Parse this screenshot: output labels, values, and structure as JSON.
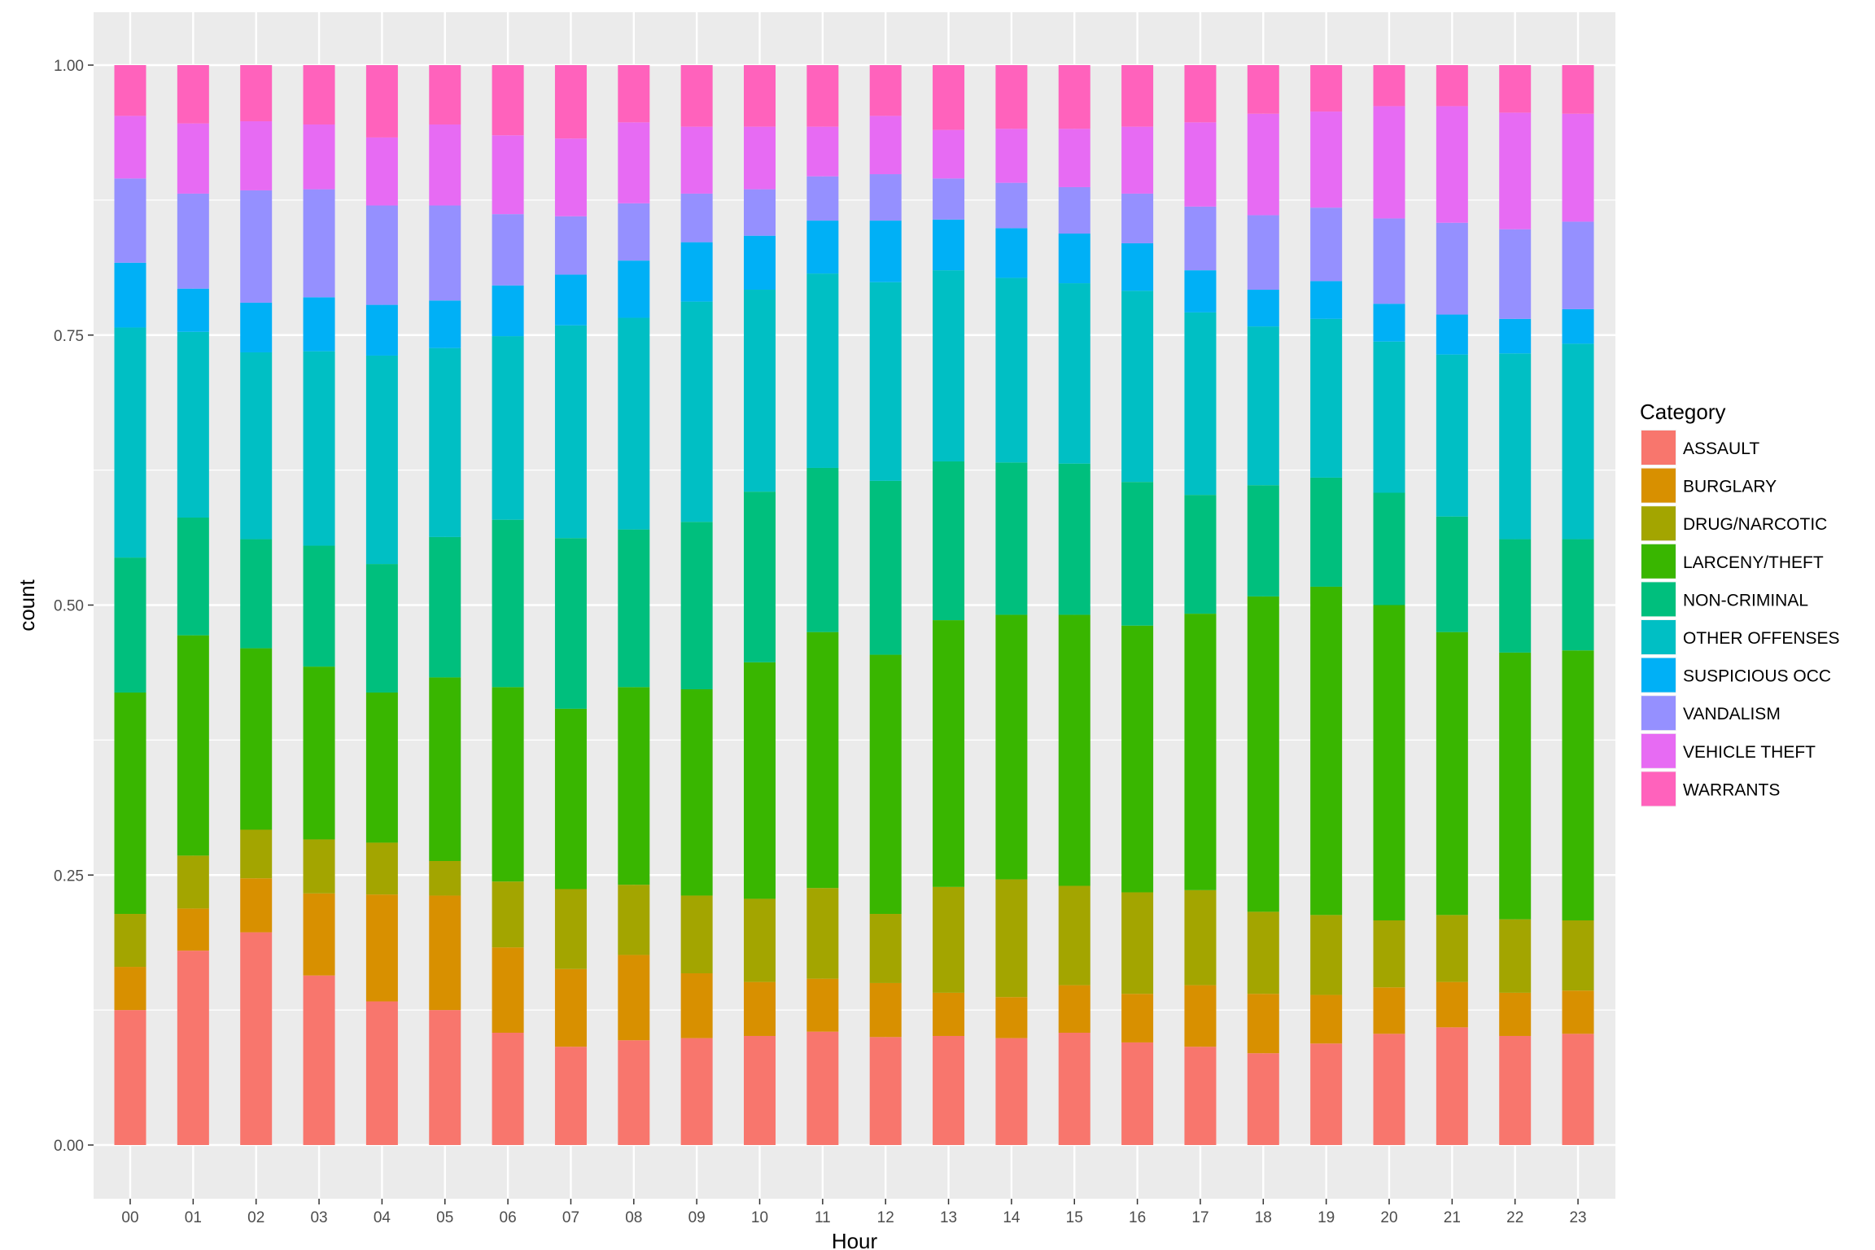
{
  "chart_data": {
    "type": "bar",
    "stacked": true,
    "position": "fill",
    "xlabel": "Hour",
    "ylabel": "count",
    "ylim": [
      0,
      1
    ],
    "yticks": [
      "0.00",
      "0.25",
      "0.50",
      "0.75",
      "1.00"
    ],
    "grid": true,
    "legend_title": "Category",
    "legend_position": "right",
    "categories": [
      "00",
      "01",
      "02",
      "03",
      "04",
      "05",
      "06",
      "07",
      "08",
      "09",
      "10",
      "11",
      "12",
      "13",
      "14",
      "15",
      "16",
      "17",
      "18",
      "19",
      "20",
      "21",
      "22",
      "23"
    ],
    "series": [
      {
        "name": "ASSAULT",
        "color": "#F8766D",
        "values": [
          0.125,
          0.18,
          0.197,
          0.157,
          0.133,
          0.125,
          0.104,
          0.091,
          0.097,
          0.099,
          0.101,
          0.105,
          0.1,
          0.101,
          0.099,
          0.104,
          0.095,
          0.091,
          0.085,
          0.094,
          0.103,
          0.109,
          0.101,
          0.103
        ]
      },
      {
        "name": "BURGLARY",
        "color": "#D89000",
        "values": [
          0.04,
          0.039,
          0.05,
          0.076,
          0.099,
          0.106,
          0.079,
          0.072,
          0.079,
          0.06,
          0.05,
          0.049,
          0.05,
          0.04,
          0.038,
          0.044,
          0.045,
          0.057,
          0.055,
          0.045,
          0.043,
          0.042,
          0.04,
          0.04
        ]
      },
      {
        "name": "DRUG/NARCOTIC",
        "color": "#A3A500",
        "values": [
          0.049,
          0.049,
          0.045,
          0.05,
          0.048,
          0.032,
          0.061,
          0.074,
          0.065,
          0.072,
          0.077,
          0.084,
          0.064,
          0.098,
          0.109,
          0.092,
          0.094,
          0.088,
          0.076,
          0.074,
          0.062,
          0.062,
          0.068,
          0.065
        ]
      },
      {
        "name": "LARCENY/THEFT",
        "color": "#39B600",
        "values": [
          0.205,
          0.204,
          0.168,
          0.16,
          0.139,
          0.17,
          0.18,
          0.167,
          0.183,
          0.191,
          0.219,
          0.237,
          0.24,
          0.247,
          0.245,
          0.251,
          0.247,
          0.256,
          0.292,
          0.304,
          0.292,
          0.262,
          0.247,
          0.25
        ]
      },
      {
        "name": "NON-CRIMINAL",
        "color": "#00BF7D",
        "values": [
          0.125,
          0.109,
          0.101,
          0.112,
          0.119,
          0.13,
          0.155,
          0.158,
          0.146,
          0.155,
          0.158,
          0.152,
          0.161,
          0.147,
          0.141,
          0.14,
          0.133,
          0.11,
          0.103,
          0.101,
          0.104,
          0.107,
          0.105,
          0.103
        ]
      },
      {
        "name": "OTHER OFFENSES",
        "color": "#00BFC4",
        "values": [
          0.213,
          0.172,
          0.173,
          0.18,
          0.193,
          0.175,
          0.17,
          0.197,
          0.196,
          0.204,
          0.187,
          0.18,
          0.184,
          0.177,
          0.171,
          0.167,
          0.177,
          0.169,
          0.147,
          0.147,
          0.14,
          0.15,
          0.172,
          0.181
        ]
      },
      {
        "name": "SUSPICIOUS OCC",
        "color": "#00B0F6",
        "values": [
          0.06,
          0.04,
          0.046,
          0.05,
          0.047,
          0.044,
          0.047,
          0.047,
          0.053,
          0.055,
          0.05,
          0.049,
          0.057,
          0.047,
          0.046,
          0.046,
          0.044,
          0.039,
          0.034,
          0.035,
          0.035,
          0.037,
          0.032,
          0.032
        ]
      },
      {
        "name": "VANDALISM",
        "color": "#9590FF",
        "values": [
          0.078,
          0.088,
          0.104,
          0.1,
          0.092,
          0.088,
          0.066,
          0.054,
          0.053,
          0.045,
          0.043,
          0.041,
          0.043,
          0.038,
          0.042,
          0.043,
          0.046,
          0.059,
          0.069,
          0.068,
          0.079,
          0.085,
          0.083,
          0.081
        ]
      },
      {
        "name": "VEHICLE THEFT",
        "color": "#E76BF3",
        "values": [
          0.058,
          0.065,
          0.064,
          0.06,
          0.063,
          0.075,
          0.073,
          0.072,
          0.075,
          0.062,
          0.058,
          0.046,
          0.054,
          0.045,
          0.05,
          0.054,
          0.062,
          0.078,
          0.094,
          0.089,
          0.104,
          0.108,
          0.108,
          0.1
        ]
      },
      {
        "name": "WARRANTS",
        "color": "#FF62BC",
        "values": [
          0.047,
          0.054,
          0.052,
          0.055,
          0.067,
          0.055,
          0.065,
          0.068,
          0.053,
          0.057,
          0.057,
          0.057,
          0.047,
          0.06,
          0.059,
          0.059,
          0.057,
          0.053,
          0.045,
          0.043,
          0.038,
          0.038,
          0.044,
          0.045
        ]
      }
    ]
  }
}
